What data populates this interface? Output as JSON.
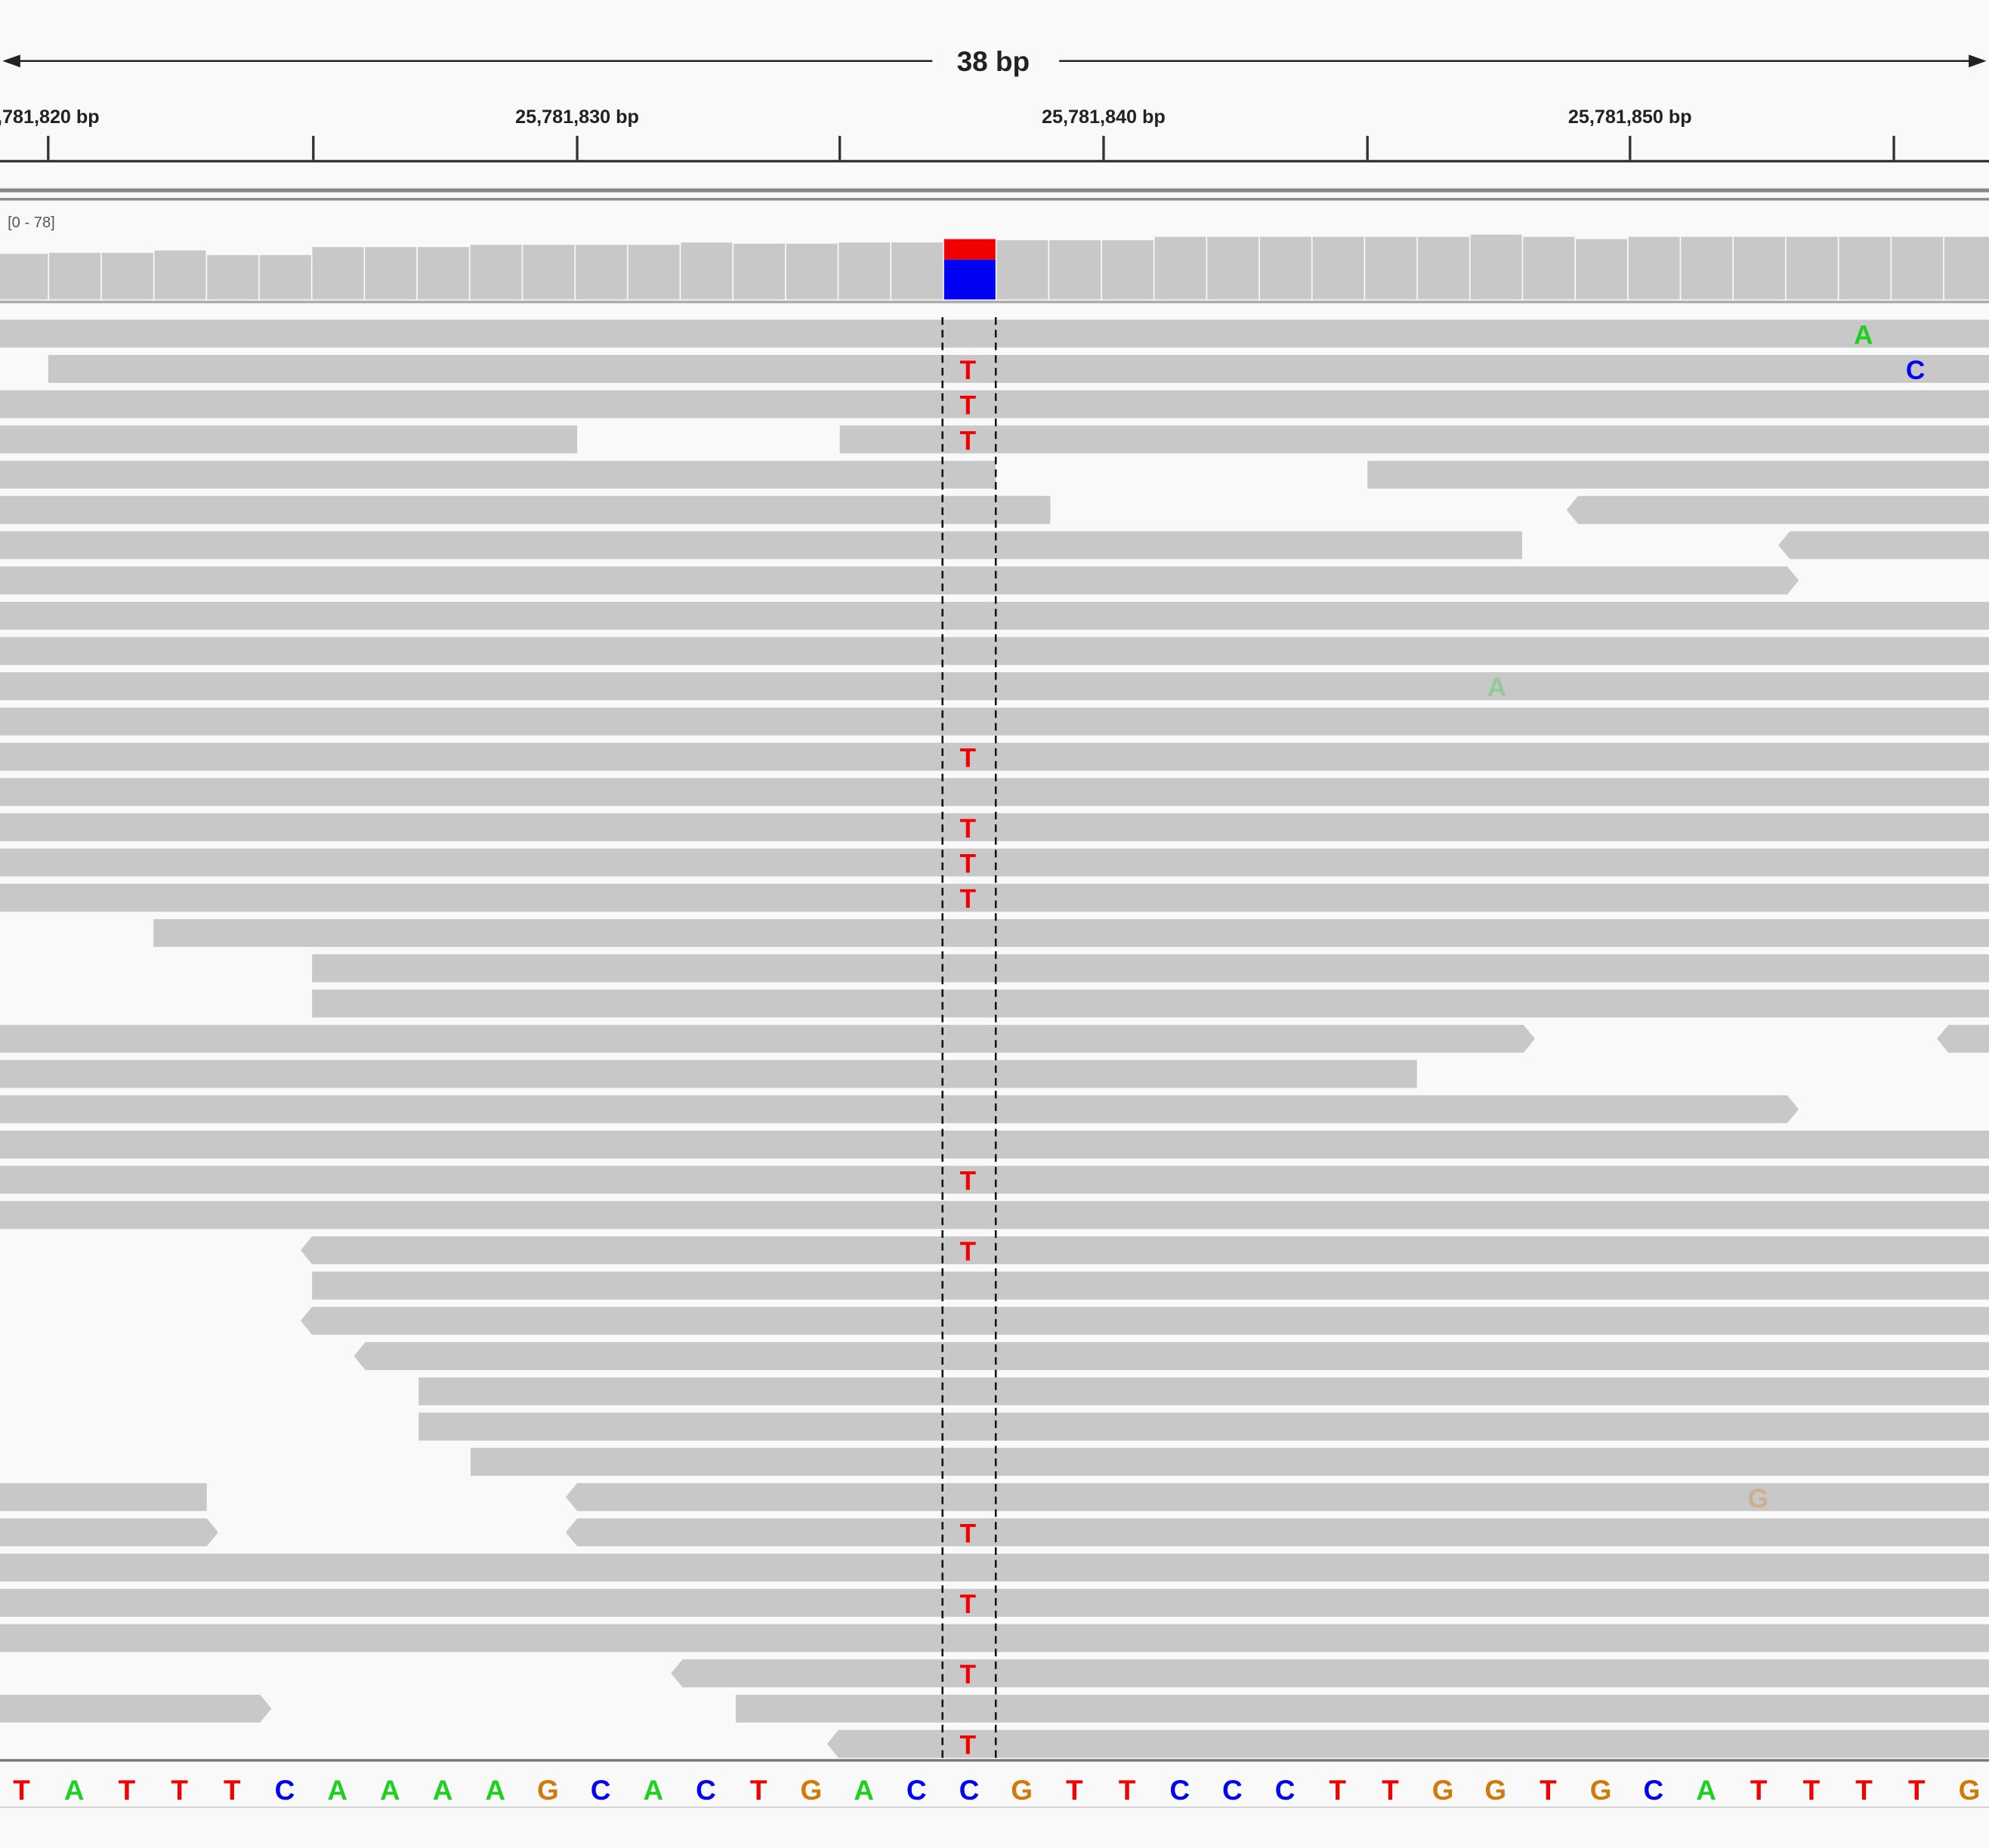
{
  "ruler": {
    "span": "38 bp",
    "labels": [
      ",781,820 bp",
      "25,781,830 bp",
      "25,781,840 bp",
      "25,781,850 bp"
    ]
  },
  "coverage": {
    "range_label": "[0 - 78]",
    "ylim": [
      0,
      78
    ],
    "values": [
      40,
      41,
      41,
      43,
      39,
      39,
      46,
      46,
      46,
      48,
      48,
      48,
      48,
      50,
      49,
      49,
      50,
      50,
      53,
      52,
      52,
      52,
      55,
      55,
      55,
      55,
      55,
      55,
      57,
      55,
      53,
      55,
      55,
      55,
      55,
      55,
      55,
      55
    ],
    "allele_counts": [
      {
        "base": "T",
        "count": 18
      },
      {
        "base": "C",
        "count": 35
      }
    ]
  },
  "base_colors": {
    "A": "#1fd01f",
    "C": "#0000f5",
    "G": "#d17a0a",
    "T": "#f00000"
  },
  "reads": {
    "mismatches": [
      "A",
      "T",
      "C",
      "T",
      "T",
      "A",
      "T",
      "T",
      "T",
      "T",
      "T",
      "T",
      "G",
      "T",
      "T",
      "T",
      "T"
    ]
  },
  "reference": {
    "bases": [
      "T",
      "A",
      "T",
      "T",
      "T",
      "C",
      "A",
      "A",
      "A",
      "A",
      "G",
      "C",
      "A",
      "C",
      "T",
      "G",
      "A",
      "C",
      "C",
      "G",
      "T",
      "T",
      "C",
      "C",
      "C",
      "T",
      "T",
      "G",
      "G",
      "T",
      "G",
      "C",
      "A",
      "T",
      "T",
      "T",
      "T",
      "G"
    ]
  }
}
